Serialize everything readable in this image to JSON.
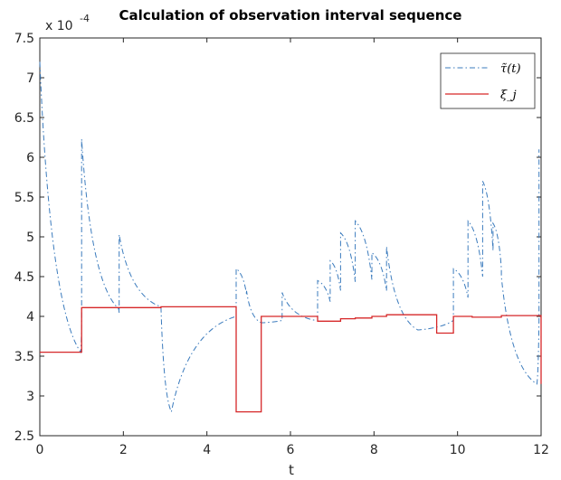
{
  "chart_data": {
    "type": "line",
    "title": "Calculation of observation interval sequence",
    "xlabel": "t",
    "ylabel": "",
    "exponent_label": "x 10",
    "exponent_power": "-4",
    "xlim": [
      0,
      12
    ],
    "ylim": [
      2.5,
      7.5
    ],
    "xticks": [
      "0",
      "2",
      "4",
      "6",
      "8",
      "10",
      "12"
    ],
    "yticks": [
      "2.5",
      "3",
      "3.5",
      "4",
      "4.5",
      "5",
      "5.5",
      "6",
      "6.5",
      "7",
      "7.5"
    ],
    "grid": false,
    "legend_position": "top-right",
    "colors": {
      "tau": "#3b7bbd",
      "xi": "#d62728",
      "axes": "#262626"
    },
    "series": [
      {
        "name": "τ̃(t)",
        "style": "dash-dot",
        "reset_times": [
          0,
          1.0,
          1.9,
          4.7,
          4.95,
          5.8,
          6.65,
          6.95,
          7.2,
          7.55,
          7.95,
          8.3,
          9.9,
          10.25,
          10.6,
          10.85,
          11.05,
          11.95
        ],
        "peaks": [
          7.2,
          6.23,
          5.03,
          4.6,
          4.32,
          4.3,
          4.45,
          4.7,
          5.05,
          5.2,
          4.8,
          4.88,
          4.6,
          5.2,
          5.7,
          5.17,
          4.5,
          6.1
        ],
        "min_points": [
          {
            "t": 0.98,
            "v": 3.55
          },
          {
            "t": 1.88,
            "v": 4.1
          },
          {
            "t": 2.9,
            "v": 4.12
          },
          {
            "t": 3.15,
            "v": 2.8
          },
          {
            "t": 4.7,
            "v": 4.0
          },
          {
            "t": 5.3,
            "v": 3.92
          },
          {
            "t": 6.6,
            "v": 3.95
          },
          {
            "t": 9.05,
            "v": 3.83
          },
          {
            "t": 11.9,
            "v": 3.15
          }
        ]
      },
      {
        "name": "ξ_j",
        "style": "solid-step",
        "x": [
          0,
          1.0,
          2.9,
          4.7,
          5.3,
          6.65,
          6.95,
          7.2,
          7.55,
          7.95,
          8.3,
          9.5,
          9.9,
          10.35,
          11.05,
          12
        ],
        "y": [
          3.55,
          4.11,
          4.12,
          2.8,
          4.0,
          3.94,
          3.94,
          3.97,
          3.98,
          4.0,
          4.02,
          3.79,
          4.0,
          3.99,
          4.01,
          3.15
        ]
      }
    ]
  }
}
